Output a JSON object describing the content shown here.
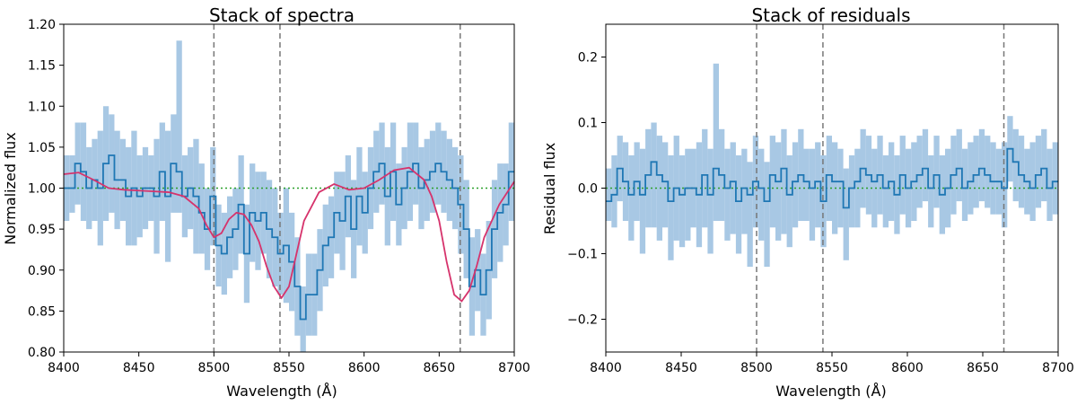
{
  "chart_data": [
    {
      "type": "step-line",
      "title": "Stack of spectra",
      "xlabel": "Wavelength (Å)",
      "ylabel": "Normalized flux",
      "xlim": [
        8400,
        8700
      ],
      "ylim": [
        0.8,
        1.2
      ],
      "xticks": [
        8400,
        8450,
        8500,
        8550,
        8600,
        8650,
        8700
      ],
      "xtick_labels": [
        "8400",
        "8450",
        "8500",
        "8550",
        "8600",
        "8650",
        "8700"
      ],
      "yticks": [
        0.8,
        0.85,
        0.9,
        0.95,
        1.0,
        1.05,
        1.1,
        1.15,
        1.2
      ],
      "ytick_labels": [
        "0.80",
        "0.85",
        "0.90",
        "0.95",
        "1.00",
        "1.05",
        "1.10",
        "1.15",
        "1.20"
      ],
      "reference_level": 1.0,
      "reference_color": "#2ca02c",
      "vlines": [
        8500,
        8544,
        8664
      ],
      "vline_color": "#777777",
      "step_color": "#1f77b4",
      "band_color": "#a8c8e4",
      "model_color": "#d6336c",
      "bin_edges": [
        8400,
        8700
      ],
      "bin_count": 80,
      "series": [
        {
          "name": "stacked spectrum",
          "values": [
            1.0,
            1.0,
            1.03,
            1.02,
            1.0,
            1.01,
            1.0,
            1.03,
            1.04,
            1.01,
            1.01,
            0.99,
            1.0,
            0.99,
            1.0,
            1.0,
            0.99,
            1.02,
            0.99,
            1.03,
            1.02,
            0.99,
            1.0,
            0.99,
            0.97,
            0.95,
            0.99,
            0.93,
            0.92,
            0.94,
            0.95,
            0.98,
            0.92,
            0.97,
            0.96,
            0.97,
            0.95,
            0.94,
            0.92,
            0.93,
            0.91,
            0.88,
            0.84,
            0.87,
            0.87,
            0.9,
            0.93,
            0.94,
            0.97,
            0.96,
            0.99,
            0.95,
            0.99,
            0.97,
            1.0,
            1.02,
            1.03,
            0.99,
            1.02,
            0.98,
            1.0,
            1.02,
            1.03,
            1.0,
            1.01,
            1.02,
            1.03,
            1.02,
            1.01,
            1.0,
            0.98,
            0.95,
            0.88,
            0.9,
            0.87,
            0.9,
            0.95,
            0.97,
            0.98,
            1.02
          ]
        },
        {
          "name": "error band",
          "lower": [
            0.96,
            0.97,
            0.98,
            0.96,
            0.95,
            0.96,
            0.93,
            0.96,
            0.97,
            0.95,
            0.96,
            0.93,
            0.93,
            0.94,
            0.95,
            0.96,
            0.92,
            0.96,
            0.91,
            0.97,
            0.97,
            0.94,
            0.95,
            0.92,
            0.92,
            0.9,
            0.93,
            0.88,
            0.87,
            0.89,
            0.9,
            0.92,
            0.86,
            0.91,
            0.9,
            0.92,
            0.89,
            0.88,
            0.87,
            0.86,
            0.85,
            0.82,
            0.8,
            0.82,
            0.82,
            0.85,
            0.88,
            0.89,
            0.92,
            0.9,
            0.94,
            0.89,
            0.93,
            0.92,
            0.95,
            0.97,
            0.98,
            0.93,
            0.96,
            0.93,
            0.95,
            0.96,
            0.98,
            0.95,
            0.96,
            0.97,
            0.98,
            0.97,
            0.96,
            0.95,
            0.92,
            0.89,
            0.82,
            0.85,
            0.82,
            0.84,
            0.89,
            0.91,
            0.93,
            0.96
          ],
          "upper": [
            1.04,
            1.04,
            1.08,
            1.08,
            1.05,
            1.06,
            1.07,
            1.1,
            1.09,
            1.07,
            1.06,
            1.05,
            1.07,
            1.04,
            1.05,
            1.04,
            1.06,
            1.08,
            1.07,
            1.09,
            1.18,
            1.04,
            1.05,
            1.06,
            1.03,
            1.0,
            1.05,
            0.98,
            0.97,
            0.99,
            1.0,
            1.04,
            0.98,
            1.03,
            1.02,
            1.02,
            1.01,
            1.0,
            0.97,
            1.0,
            0.97,
            0.94,
            0.88,
            0.92,
            0.92,
            0.95,
            0.98,
            0.99,
            1.02,
            1.02,
            1.04,
            1.01,
            1.05,
            1.02,
            1.05,
            1.07,
            1.08,
            1.05,
            1.08,
            1.03,
            1.05,
            1.08,
            1.08,
            1.05,
            1.06,
            1.07,
            1.08,
            1.07,
            1.06,
            1.05,
            1.04,
            1.01,
            0.94,
            0.95,
            0.92,
            0.96,
            1.01,
            1.03,
            1.03,
            1.08
          ]
        },
        {
          "name": "model fit",
          "x": [
            8400,
            8410,
            8420,
            8430,
            8440,
            8450,
            8460,
            8470,
            8480,
            8490,
            8495,
            8500,
            8505,
            8510,
            8515,
            8520,
            8525,
            8530,
            8535,
            8540,
            8545,
            8550,
            8555,
            8560,
            8570,
            8580,
            8590,
            8600,
            8610,
            8620,
            8630,
            8640,
            8645,
            8650,
            8655,
            8660,
            8665,
            8670,
            8675,
            8680,
            8690,
            8700
          ],
          "values": [
            1.017,
            1.019,
            1.01,
            1.0,
            0.998,
            0.997,
            0.996,
            0.995,
            0.99,
            0.975,
            0.955,
            0.94,
            0.945,
            0.962,
            0.97,
            0.968,
            0.955,
            0.935,
            0.905,
            0.88,
            0.866,
            0.88,
            0.92,
            0.96,
            0.995,
            1.005,
            0.998,
            1.0,
            1.01,
            1.022,
            1.025,
            1.01,
            0.99,
            0.96,
            0.91,
            0.87,
            0.862,
            0.875,
            0.905,
            0.94,
            0.98,
            1.008
          ]
        }
      ]
    },
    {
      "type": "step-line",
      "title": "Stack of residuals",
      "xlabel": "Wavelength (Å)",
      "ylabel": "Residual flux",
      "xlim": [
        8400,
        8700
      ],
      "ylim": [
        -0.25,
        0.25
      ],
      "xticks": [
        8400,
        8450,
        8500,
        8550,
        8600,
        8650,
        8700
      ],
      "xtick_labels": [
        "8400",
        "8450",
        "8500",
        "8550",
        "8600",
        "8650",
        "8700"
      ],
      "yticks": [
        -0.2,
        -0.1,
        0.0,
        0.1,
        0.2
      ],
      "ytick_labels": [
        "−0.2",
        "−0.1",
        "0.0",
        "0.1",
        "0.2"
      ],
      "reference_level": 0.0,
      "reference_color": "#2ca02c",
      "vlines": [
        8500,
        8544,
        8664
      ],
      "vline_color": "#777777",
      "step_color": "#1f77b4",
      "band_color": "#a8c8e4",
      "bin_edges": [
        8400,
        8700
      ],
      "bin_count": 80,
      "series": [
        {
          "name": "stacked residual",
          "values": [
            -0.02,
            -0.01,
            0.03,
            0.01,
            -0.01,
            0.01,
            -0.01,
            0.02,
            0.04,
            0.02,
            0.01,
            -0.02,
            0.0,
            -0.01,
            0.0,
            0.0,
            -0.01,
            0.02,
            -0.01,
            0.03,
            0.02,
            0.0,
            0.01,
            -0.02,
            0.0,
            -0.01,
            0.01,
            0.0,
            -0.02,
            0.02,
            0.01,
            0.03,
            -0.01,
            0.01,
            0.02,
            0.01,
            0.0,
            0.01,
            -0.02,
            0.02,
            0.01,
            0.01,
            -0.03,
            0.0,
            0.01,
            0.03,
            0.02,
            0.01,
            0.02,
            0.0,
            0.01,
            -0.01,
            0.02,
            0.0,
            0.01,
            0.02,
            0.03,
            0.0,
            0.02,
            -0.01,
            0.0,
            0.02,
            0.03,
            0.0,
            0.01,
            0.02,
            0.03,
            0.02,
            0.01,
            0.01,
            0.0,
            0.06,
            0.04,
            0.02,
            0.01,
            0.0,
            0.02,
            0.03,
            0.0,
            0.01
          ]
        },
        {
          "name": "residual error band",
          "lower": [
            -0.05,
            -0.06,
            -0.02,
            -0.05,
            -0.08,
            -0.05,
            -0.1,
            -0.06,
            -0.06,
            -0.08,
            -0.06,
            -0.11,
            -0.08,
            -0.09,
            -0.08,
            -0.06,
            -0.09,
            -0.06,
            -0.1,
            -0.05,
            -0.05,
            -0.08,
            -0.07,
            -0.1,
            -0.07,
            -0.12,
            -0.06,
            -0.08,
            -0.12,
            -0.06,
            -0.08,
            -0.07,
            -0.09,
            -0.06,
            -0.05,
            -0.05,
            -0.08,
            -0.06,
            -0.09,
            -0.05,
            -0.07,
            -0.06,
            -0.11,
            -0.06,
            -0.06,
            -0.03,
            -0.04,
            -0.06,
            -0.04,
            -0.06,
            -0.05,
            -0.07,
            -0.04,
            -0.06,
            -0.05,
            -0.03,
            -0.02,
            -0.06,
            -0.03,
            -0.07,
            -0.06,
            -0.04,
            -0.02,
            -0.05,
            -0.04,
            -0.03,
            -0.02,
            -0.03,
            -0.04,
            -0.04,
            -0.06,
            0.01,
            -0.02,
            -0.03,
            -0.04,
            -0.05,
            -0.03,
            -0.02,
            -0.05,
            -0.04
          ],
          "upper": [
            0.03,
            0.05,
            0.08,
            0.07,
            0.05,
            0.07,
            0.06,
            0.09,
            0.1,
            0.08,
            0.07,
            0.05,
            0.08,
            0.05,
            0.06,
            0.06,
            0.07,
            0.09,
            0.06,
            0.19,
            0.09,
            0.06,
            0.07,
            0.05,
            0.06,
            0.04,
            0.08,
            0.06,
            0.04,
            0.08,
            0.07,
            0.09,
            0.05,
            0.07,
            0.09,
            0.06,
            0.06,
            0.07,
            0.05,
            0.08,
            0.07,
            0.06,
            0.03,
            0.05,
            0.06,
            0.09,
            0.08,
            0.06,
            0.08,
            0.05,
            0.07,
            0.05,
            0.08,
            0.06,
            0.07,
            0.08,
            0.09,
            0.05,
            0.08,
            0.05,
            0.06,
            0.08,
            0.09,
            0.06,
            0.07,
            0.08,
            0.09,
            0.08,
            0.07,
            0.06,
            0.07,
            0.11,
            0.09,
            0.08,
            0.06,
            0.07,
            0.08,
            0.09,
            0.06,
            0.07
          ]
        }
      ]
    }
  ]
}
